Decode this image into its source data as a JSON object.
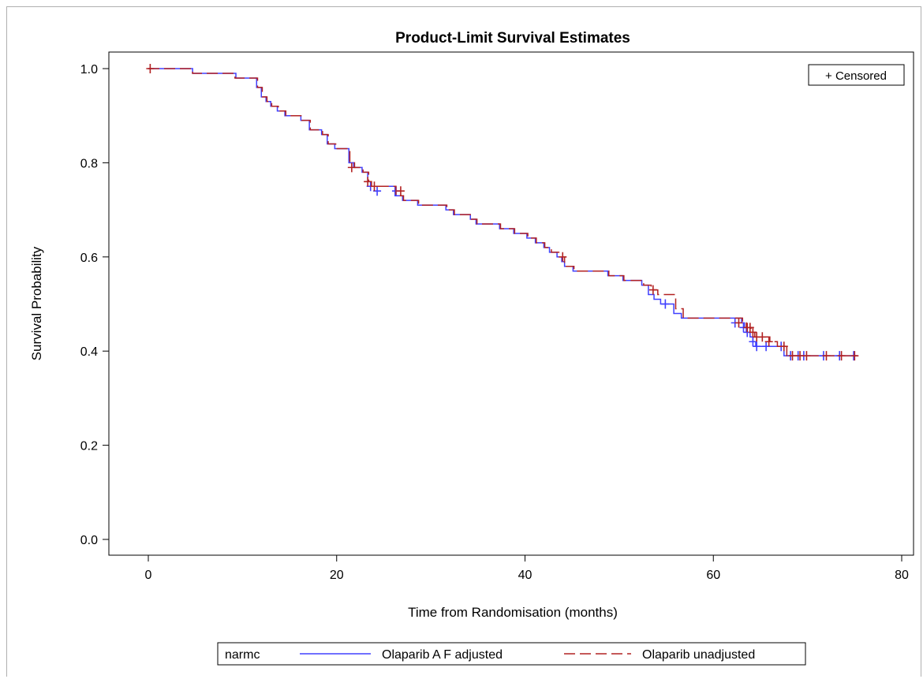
{
  "chart_data": {
    "type": "line",
    "title": "Product-Limit Survival Estimates",
    "xlabel": "Time from Randomisation (months)",
    "ylabel": "Survival Probability",
    "xlim": [
      0,
      80
    ],
    "ylim": [
      0,
      1
    ],
    "xticks": [
      0,
      20,
      40,
      60,
      80
    ],
    "yticks": [
      "0.0",
      "0.2",
      "0.4",
      "0.6",
      "0.8",
      "1.0"
    ],
    "censor_legend": "+ Censored",
    "legend": {
      "label": "narmc",
      "placement": "bottom"
    },
    "step": true,
    "series": [
      {
        "name": "Olaparib A F adjusted",
        "color": "#4040ff",
        "dash": "solid",
        "points": [
          [
            0,
            1.0
          ],
          [
            4.7,
            0.99
          ],
          [
            9.3,
            0.98
          ],
          [
            11.5,
            0.96
          ],
          [
            12.0,
            0.94
          ],
          [
            12.5,
            0.93
          ],
          [
            13.0,
            0.92
          ],
          [
            13.7,
            0.91
          ],
          [
            14.5,
            0.9
          ],
          [
            16.2,
            0.89
          ],
          [
            17.1,
            0.87
          ],
          [
            18.4,
            0.86
          ],
          [
            19.0,
            0.84
          ],
          [
            19.8,
            0.83
          ],
          [
            21.3,
            0.8
          ],
          [
            21.8,
            0.79
          ],
          [
            22.7,
            0.78
          ],
          [
            23.3,
            0.76
          ],
          [
            23.6,
            0.75
          ],
          [
            26.2,
            0.73
          ],
          [
            27.0,
            0.72
          ],
          [
            28.6,
            0.71
          ],
          [
            31.6,
            0.7
          ],
          [
            32.4,
            0.69
          ],
          [
            34.2,
            0.68
          ],
          [
            34.8,
            0.67
          ],
          [
            37.3,
            0.66
          ],
          [
            38.8,
            0.65
          ],
          [
            40.2,
            0.64
          ],
          [
            41.1,
            0.63
          ],
          [
            42.0,
            0.62
          ],
          [
            42.6,
            0.61
          ],
          [
            43.4,
            0.6
          ],
          [
            43.9,
            0.59
          ],
          [
            44.2,
            0.58
          ],
          [
            45.1,
            0.57
          ],
          [
            48.8,
            0.56
          ],
          [
            50.4,
            0.55
          ],
          [
            52.4,
            0.54
          ],
          [
            53.1,
            0.52
          ],
          [
            53.7,
            0.51
          ],
          [
            54.4,
            0.5
          ],
          [
            55.8,
            0.48
          ],
          [
            56.6,
            0.47
          ],
          [
            63.0,
            0.46
          ],
          [
            63.3,
            0.45
          ],
          [
            63.5,
            0.44
          ],
          [
            63.9,
            0.43
          ],
          [
            64.2,
            0.42
          ],
          [
            64.5,
            0.41
          ],
          [
            67.5,
            0.39
          ],
          [
            75.2,
            0.39
          ]
        ],
        "censored": [
          [
            23.6,
            0.75
          ],
          [
            24.3,
            0.74
          ],
          [
            26.3,
            0.74
          ],
          [
            54.9,
            0.5
          ],
          [
            62.3,
            0.46
          ],
          [
            63.2,
            0.45
          ],
          [
            63.6,
            0.44
          ],
          [
            64.2,
            0.42
          ],
          [
            64.6,
            0.41
          ],
          [
            65.6,
            0.41
          ],
          [
            67.2,
            0.41
          ],
          [
            68.2,
            0.39
          ],
          [
            69.0,
            0.39
          ],
          [
            69.6,
            0.39
          ],
          [
            71.7,
            0.39
          ],
          [
            73.4,
            0.39
          ],
          [
            74.9,
            0.39
          ]
        ]
      },
      {
        "name": "Olaparib unadjusted",
        "color": "#b22222",
        "dash": "dashed",
        "points": [
          [
            0,
            1.0
          ],
          [
            4.7,
            0.99
          ],
          [
            9.2,
            0.98
          ],
          [
            11.6,
            0.96
          ],
          [
            12.1,
            0.94
          ],
          [
            12.6,
            0.93
          ],
          [
            13.1,
            0.92
          ],
          [
            13.8,
            0.91
          ],
          [
            14.6,
            0.9
          ],
          [
            16.3,
            0.89
          ],
          [
            17.2,
            0.87
          ],
          [
            18.5,
            0.86
          ],
          [
            19.1,
            0.84
          ],
          [
            19.9,
            0.83
          ],
          [
            21.4,
            0.8
          ],
          [
            21.9,
            0.79
          ],
          [
            22.8,
            0.78
          ],
          [
            23.4,
            0.76
          ],
          [
            23.7,
            0.75
          ],
          [
            26.3,
            0.73
          ],
          [
            27.1,
            0.72
          ],
          [
            28.7,
            0.71
          ],
          [
            31.7,
            0.7
          ],
          [
            32.5,
            0.69
          ],
          [
            34.3,
            0.68
          ],
          [
            34.9,
            0.67
          ],
          [
            37.4,
            0.66
          ],
          [
            38.9,
            0.65
          ],
          [
            40.3,
            0.64
          ],
          [
            41.2,
            0.63
          ],
          [
            42.1,
            0.62
          ],
          [
            42.8,
            0.61
          ],
          [
            43.7,
            0.6
          ],
          [
            44.2,
            0.58
          ],
          [
            45.2,
            0.57
          ],
          [
            48.9,
            0.56
          ],
          [
            50.5,
            0.55
          ],
          [
            52.6,
            0.54
          ],
          [
            53.4,
            0.53
          ],
          [
            54.1,
            0.52
          ],
          [
            56.0,
            0.49
          ],
          [
            56.8,
            0.47
          ],
          [
            63.1,
            0.46
          ],
          [
            63.5,
            0.45
          ],
          [
            64.0,
            0.44
          ],
          [
            64.4,
            0.43
          ],
          [
            66.0,
            0.42
          ],
          [
            66.8,
            0.41
          ],
          [
            67.8,
            0.39
          ],
          [
            75.2,
            0.39
          ]
        ],
        "censored": [
          [
            0.2,
            1.0
          ],
          [
            21.6,
            0.79
          ],
          [
            23.3,
            0.76
          ],
          [
            24.0,
            0.75
          ],
          [
            26.8,
            0.74
          ],
          [
            44.0,
            0.6
          ],
          [
            53.6,
            0.53
          ],
          [
            62.7,
            0.46
          ],
          [
            63.6,
            0.45
          ],
          [
            63.9,
            0.45
          ],
          [
            64.2,
            0.44
          ],
          [
            64.6,
            0.43
          ],
          [
            65.2,
            0.43
          ],
          [
            65.9,
            0.42
          ],
          [
            67.5,
            0.41
          ],
          [
            68.4,
            0.39
          ],
          [
            69.2,
            0.39
          ],
          [
            69.9,
            0.39
          ],
          [
            72.0,
            0.39
          ],
          [
            73.6,
            0.39
          ],
          [
            75.0,
            0.39
          ]
        ]
      }
    ]
  }
}
